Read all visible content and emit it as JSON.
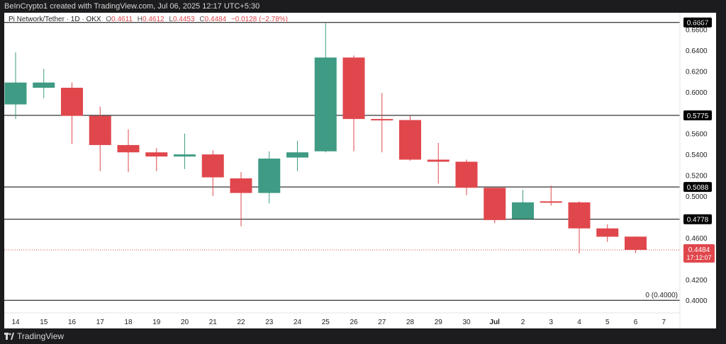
{
  "header": {
    "text": "BeInCrypto1 created with TradingView.com, Jul 06, 2025 12:17 UTC+5:30"
  },
  "footer": {
    "brand": "TradingView"
  },
  "legend": {
    "symbol": "Pi Network/Tether · 1D · OKX",
    "o_label": "O",
    "o_value": "0.4611",
    "h_label": "H",
    "h_value": "0.4612",
    "l_label": "L",
    "l_value": "0.4453",
    "c_label": "C",
    "c_value": "0.4484",
    "change": "−0.0128 (−2.78%)"
  },
  "currency": "USDT",
  "colors": {
    "up": "#3f9b83",
    "down": "#e0474c",
    "grid": "#000000",
    "price_line": "#e0474c"
  },
  "chart_data": {
    "type": "candlestick",
    "x_tick_labels": [
      "14",
      "15",
      "16",
      "17",
      "18",
      "19",
      "20",
      "21",
      "22",
      "23",
      "24",
      "25",
      "26",
      "27",
      "28",
      "29",
      "30",
      "Jul",
      "2",
      "3",
      "4",
      "5",
      "6",
      "7"
    ],
    "y_tick_labels": [
      "0.6600",
      "0.6400",
      "0.6200",
      "0.6000",
      "0.5800",
      "0.5600",
      "0.5400",
      "0.5200",
      "0.5000",
      "0.4800",
      "0.4600",
      "0.4400",
      "0.4200",
      "0.4000"
    ],
    "y_ticks": [
      0.66,
      0.64,
      0.62,
      0.6,
      0.58,
      0.56,
      0.54,
      0.52,
      0.5,
      0.48,
      0.46,
      0.44,
      0.42,
      0.4
    ],
    "ylim": [
      0.392,
      0.676
    ],
    "candles": [
      {
        "o": 0.588,
        "h": 0.638,
        "l": 0.574,
        "c": 0.609
      },
      {
        "o": 0.604,
        "h": 0.622,
        "l": 0.594,
        "c": 0.609
      },
      {
        "o": 0.604,
        "h": 0.609,
        "l": 0.55,
        "c": 0.577
      },
      {
        "o": 0.577,
        "h": 0.586,
        "l": 0.524,
        "c": 0.549
      },
      {
        "o": 0.549,
        "h": 0.564,
        "l": 0.523,
        "c": 0.542
      },
      {
        "o": 0.542,
        "h": 0.546,
        "l": 0.524,
        "c": 0.538
      },
      {
        "o": 0.538,
        "h": 0.56,
        "l": 0.526,
        "c": 0.54
      },
      {
        "o": 0.54,
        "h": 0.544,
        "l": 0.5,
        "c": 0.518
      },
      {
        "o": 0.517,
        "h": 0.523,
        "l": 0.471,
        "c": 0.503
      },
      {
        "o": 0.503,
        "h": 0.543,
        "l": 0.493,
        "c": 0.536
      },
      {
        "o": 0.537,
        "h": 0.553,
        "l": 0.524,
        "c": 0.542
      },
      {
        "o": 0.543,
        "h": 0.666,
        "l": 0.542,
        "c": 0.633
      },
      {
        "o": 0.633,
        "h": 0.635,
        "l": 0.543,
        "c": 0.574
      },
      {
        "o": 0.574,
        "h": 0.599,
        "l": 0.542,
        "c": 0.573
      },
      {
        "o": 0.573,
        "h": 0.577,
        "l": 0.534,
        "c": 0.535
      },
      {
        "o": 0.535,
        "h": 0.551,
        "l": 0.512,
        "c": 0.533
      },
      {
        "o": 0.533,
        "h": 0.535,
        "l": 0.501,
        "c": 0.508
      },
      {
        "o": 0.508,
        "h": 0.508,
        "l": 0.474,
        "c": 0.477
      },
      {
        "o": 0.478,
        "h": 0.506,
        "l": 0.477,
        "c": 0.494
      },
      {
        "o": 0.495,
        "h": 0.51,
        "l": 0.491,
        "c": 0.494
      },
      {
        "o": 0.494,
        "h": 0.495,
        "l": 0.445,
        "c": 0.469
      },
      {
        "o": 0.469,
        "h": 0.473,
        "l": 0.456,
        "c": 0.461
      },
      {
        "o": 0.4611,
        "h": 0.4612,
        "l": 0.4453,
        "c": 0.4484
      }
    ],
    "levels": [
      {
        "value": 0.6667,
        "label": "0.6667"
      },
      {
        "value": 0.5775,
        "label": "0.5775"
      },
      {
        "value": 0.5088,
        "label": "0.5088"
      },
      {
        "value": 0.4778,
        "label": "0.4778"
      }
    ],
    "zero_level": {
      "value": 0.4,
      "label": "0 (0.4000)"
    },
    "current_price": {
      "value": 0.4484,
      "label": "0.4484",
      "countdown": "17:12:07"
    }
  }
}
